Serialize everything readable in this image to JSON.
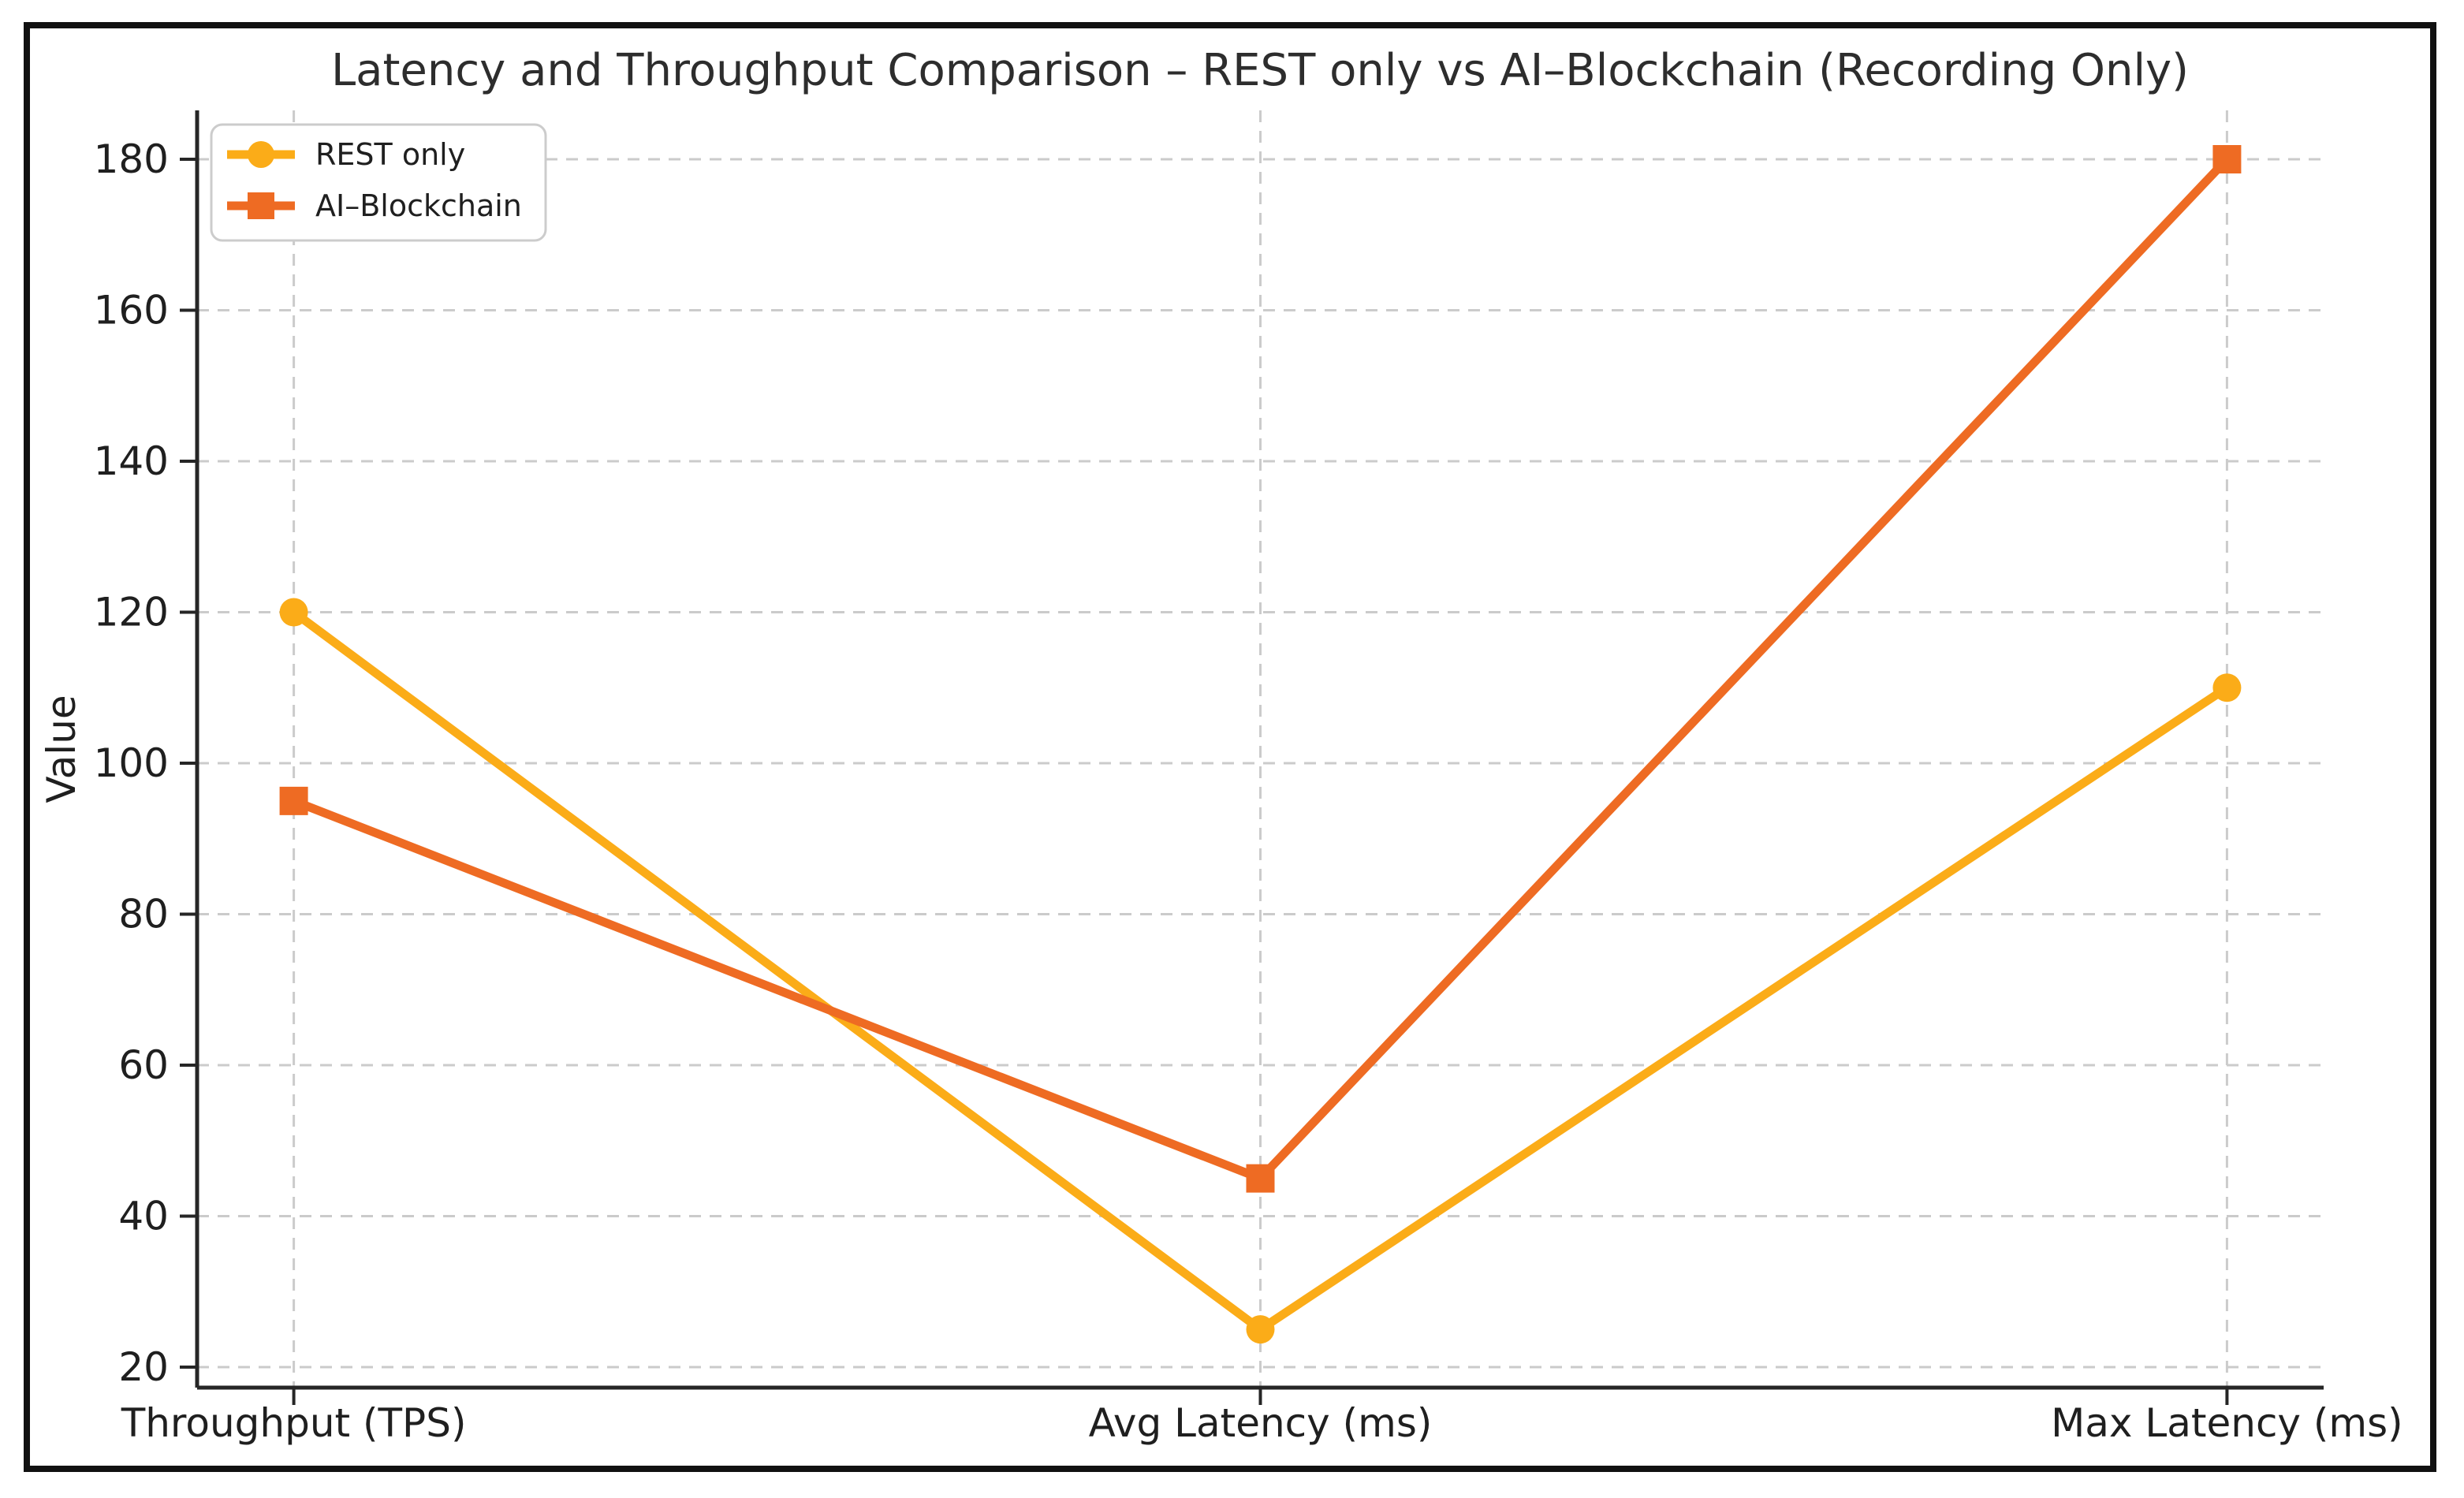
{
  "chart_data": {
    "type": "line",
    "title": "Latency and Throughput Comparison – REST only vs AI–Blockchain (Recording Only)",
    "xlabel": "",
    "ylabel": "Value",
    "categories": [
      "Throughput (TPS)",
      "Avg Latency (ms)",
      "Max Latency (ms)"
    ],
    "series": [
      {
        "name": "REST only",
        "values": [
          120,
          25,
          110
        ],
        "color": "#FBAC18",
        "marker": "circle"
      },
      {
        "name": "AI–Blockchain",
        "values": [
          95,
          45,
          180
        ],
        "color": "#EE6B23",
        "marker": "square"
      }
    ],
    "yticks": [
      20,
      40,
      60,
      80,
      100,
      120,
      140,
      160,
      180
    ],
    "ylim": [
      17.3,
      186.6
    ],
    "grid": true,
    "grid_style": "dashed",
    "legend_position": "upper left",
    "colors": {
      "grid": "#cbcbcb",
      "axis": "#262626",
      "text": "#1f1f1f",
      "title": "#2d2d2d",
      "background": "#ffffff",
      "frame": "#111111",
      "legend_border": "#cccccc",
      "legend_background": "#ffffff"
    }
  }
}
